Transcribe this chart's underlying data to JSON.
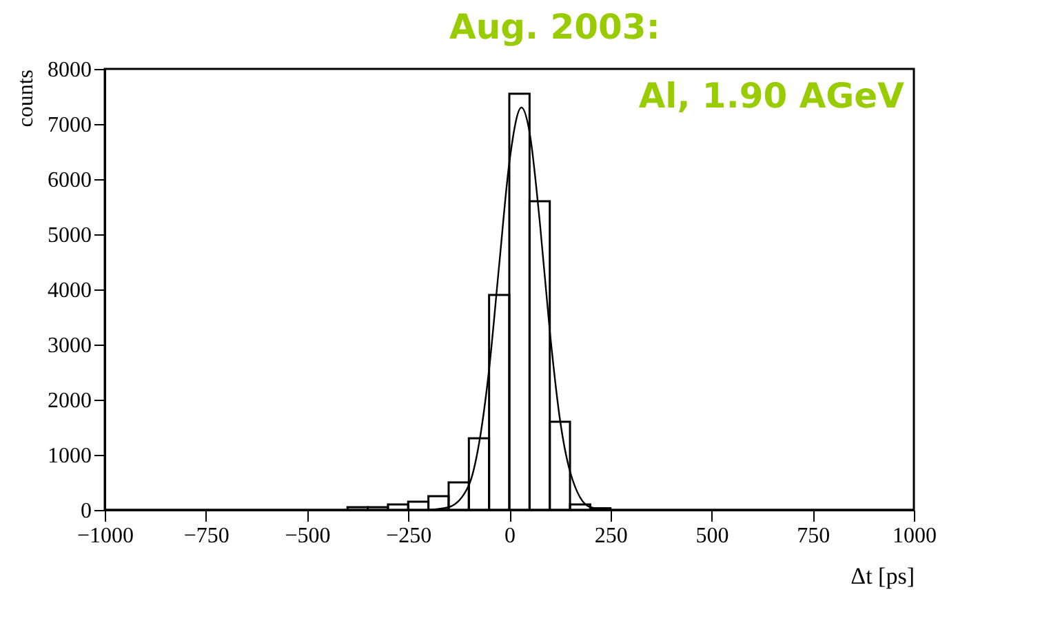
{
  "chart_data": {
    "type": "histogram",
    "xlabel": "Δt [ps]",
    "ylabel": "counts",
    "annotations": [
      "Aug. 2003:",
      "Al, 1.90 AGeV"
    ],
    "bins": [
      -1000,
      -950,
      -900,
      -850,
      -800,
      -750,
      -700,
      -650,
      -600,
      -550,
      -500,
      -450,
      -400,
      -350,
      -300,
      -250,
      -200,
      -150,
      -100,
      -50,
      0,
      50,
      100,
      150,
      200,
      250,
      300,
      350,
      400,
      450,
      500,
      550,
      600,
      650,
      700,
      750,
      800,
      850,
      900,
      950,
      1000
    ],
    "values": [
      0,
      0,
      0,
      0,
      0,
      0,
      0,
      0,
      0,
      0,
      0,
      0,
      50,
      50,
      100,
      150,
      250,
      500,
      1300,
      3900,
      7550,
      5600,
      1600,
      100,
      30,
      0,
      0,
      0,
      0,
      0,
      0,
      0,
      0,
      0,
      0,
      0,
      0,
      0,
      0,
      0
    ],
    "color": "#000000",
    "series": [
      {
        "type": "line",
        "color": "#000000",
        "x": [
          -200,
          -150,
          -100,
          -75,
          -50,
          -25,
          0,
          30,
          50,
          75,
          100,
          125,
          150,
          200,
          250
        ],
        "values": [
          0,
          50,
          450,
          1200,
          2550,
          4450,
          6300,
          7300,
          6850,
          5250,
          3250,
          1650,
          700,
          50,
          0
        ]
      }
    ],
    "xlim": [
      -1000,
      1000
    ],
    "xticks": [
      -1000,
      -750,
      -500,
      -250,
      0,
      250,
      500,
      750,
      1000
    ],
    "ylim": [
      0,
      8000
    ],
    "yticks": [
      0,
      1000,
      2000,
      3000,
      4000,
      5000,
      6000,
      7000,
      8000
    ],
    "grid": false
  }
}
